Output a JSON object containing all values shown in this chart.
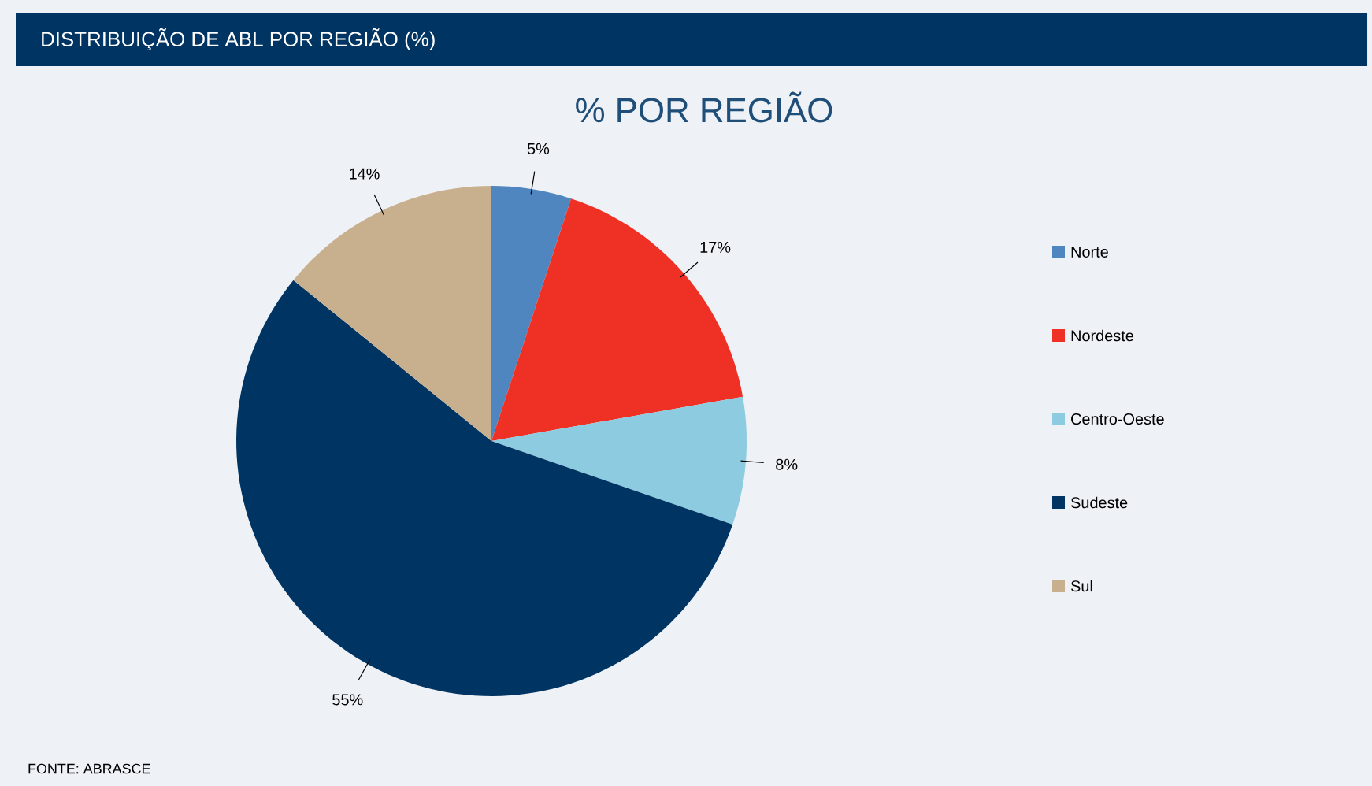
{
  "chart_data": {
    "type": "pie",
    "title": "DISTRIBUIÇÃO DE ABL POR REGIÃO (%)",
    "subtitle": "% POR REGIÃO",
    "categories": [
      "Norte",
      "Nordeste",
      "Centro-Oeste",
      "Sudeste",
      "Sul"
    ],
    "values": [
      5,
      17,
      8,
      55,
      14
    ],
    "colors": [
      "#4f86c0",
      "#ee3124",
      "#8ccbe0",
      "#003462",
      "#c8b08e"
    ],
    "value_labels": [
      "5%",
      "17%",
      "8%",
      "55%",
      "14%"
    ],
    "legend": "right",
    "annotations": [
      "FONTE: ABRASCE"
    ]
  }
}
